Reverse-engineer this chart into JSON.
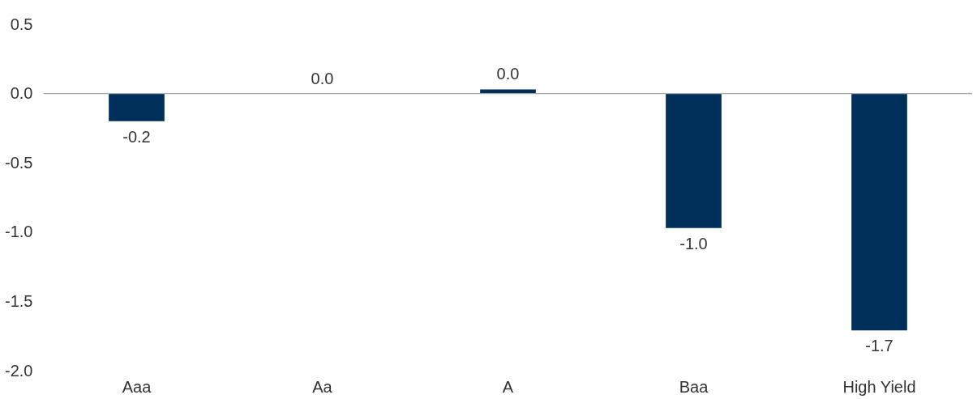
{
  "chart_data": {
    "type": "bar",
    "categories": [
      "Aaa",
      "Aa",
      "A",
      "Baa",
      "High Yield"
    ],
    "values": [
      -0.2,
      0.0,
      0.03,
      -0.97,
      -1.71
    ],
    "value_labels": [
      "-0.2",
      "0.0",
      "0.0",
      "-1.0",
      "-1.7"
    ],
    "color": "#00305a",
    "ylim": [
      -2.0,
      0.5
    ],
    "yticks": [
      {
        "value": -2.0,
        "label": "-2.0"
      },
      -1.5,
      {
        "value": -1.0,
        "label": "-1.0"
      },
      -0.5,
      {
        "value": 0.0,
        "label": "0.0"
      },
      0.5
    ],
    "ref_lines": [
      {
        "axis": "y",
        "value": 0.0,
        "color": "#a6a6a6"
      }
    ],
    "grid": false
  }
}
